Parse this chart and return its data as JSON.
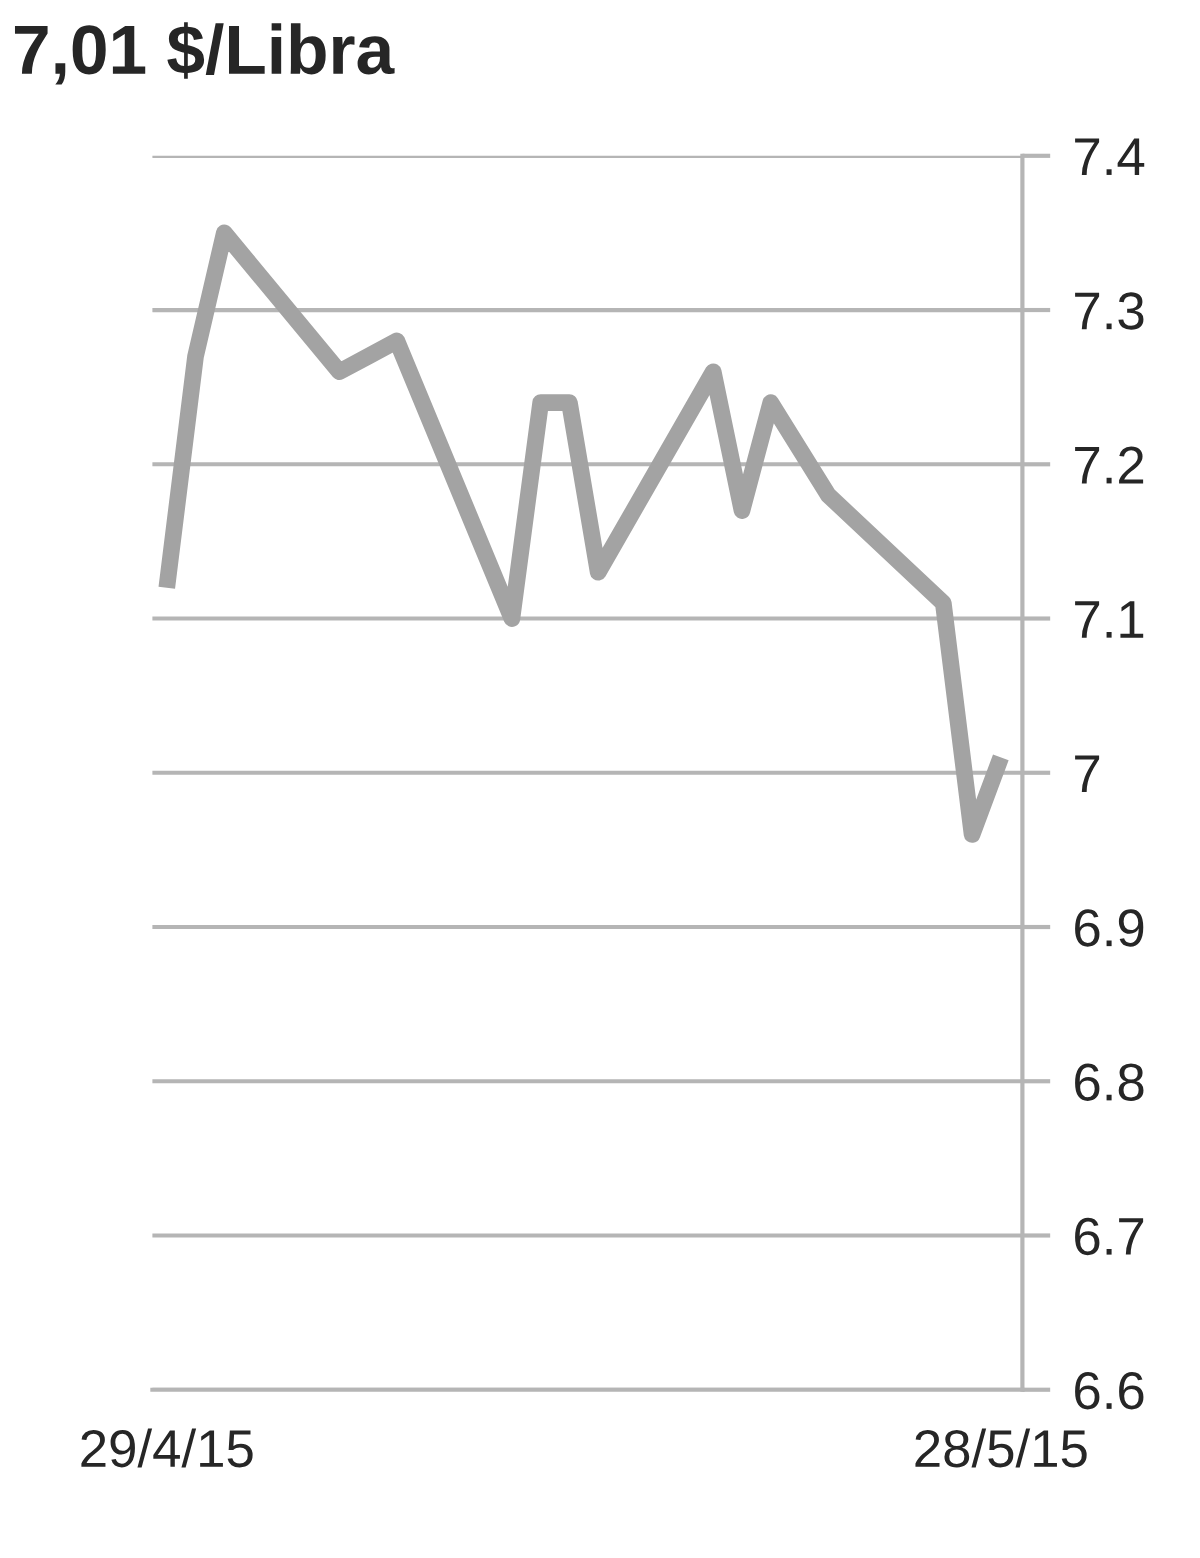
{
  "chart_data": {
    "type": "line",
    "title": "7,01 $/Libra",
    "x": [
      "2015-04-29",
      "2015-04-30",
      "2015-05-01",
      "2015-05-05",
      "2015-05-06",
      "2015-05-07",
      "2015-05-11",
      "2015-05-12",
      "2015-05-13",
      "2015-05-14",
      "2015-05-18",
      "2015-05-19",
      "2015-05-20",
      "2015-05-21",
      "2015-05-22",
      "2015-05-26",
      "2015-05-27",
      "2015-05-28"
    ],
    "series": [
      {
        "color": "#a3a3a3",
        "values": [
          7.12,
          7.27,
          7.35,
          7.26,
          7.27,
          7.28,
          7.1,
          7.24,
          7.24,
          7.13,
          7.26,
          7.17,
          7.24,
          7.21,
          7.18,
          7.11,
          6.96,
          7.01
        ]
      }
    ],
    "xlim": [
      "2015-04-28T12:00",
      "2015-05-28T18:00"
    ],
    "xticks": [
      {
        "value": "2015-04-29",
        "label": "29/4/15"
      },
      {
        "value": "2015-05-28",
        "label": "28/5/15"
      }
    ],
    "ylim": [
      6.6,
      7.4
    ],
    "yticks": [
      6.6,
      6.7,
      6.8,
      6.9,
      7,
      7.1,
      7.2,
      7.3,
      7.4
    ],
    "grid": "y",
    "marker": "none",
    "line_style": "solid"
  }
}
